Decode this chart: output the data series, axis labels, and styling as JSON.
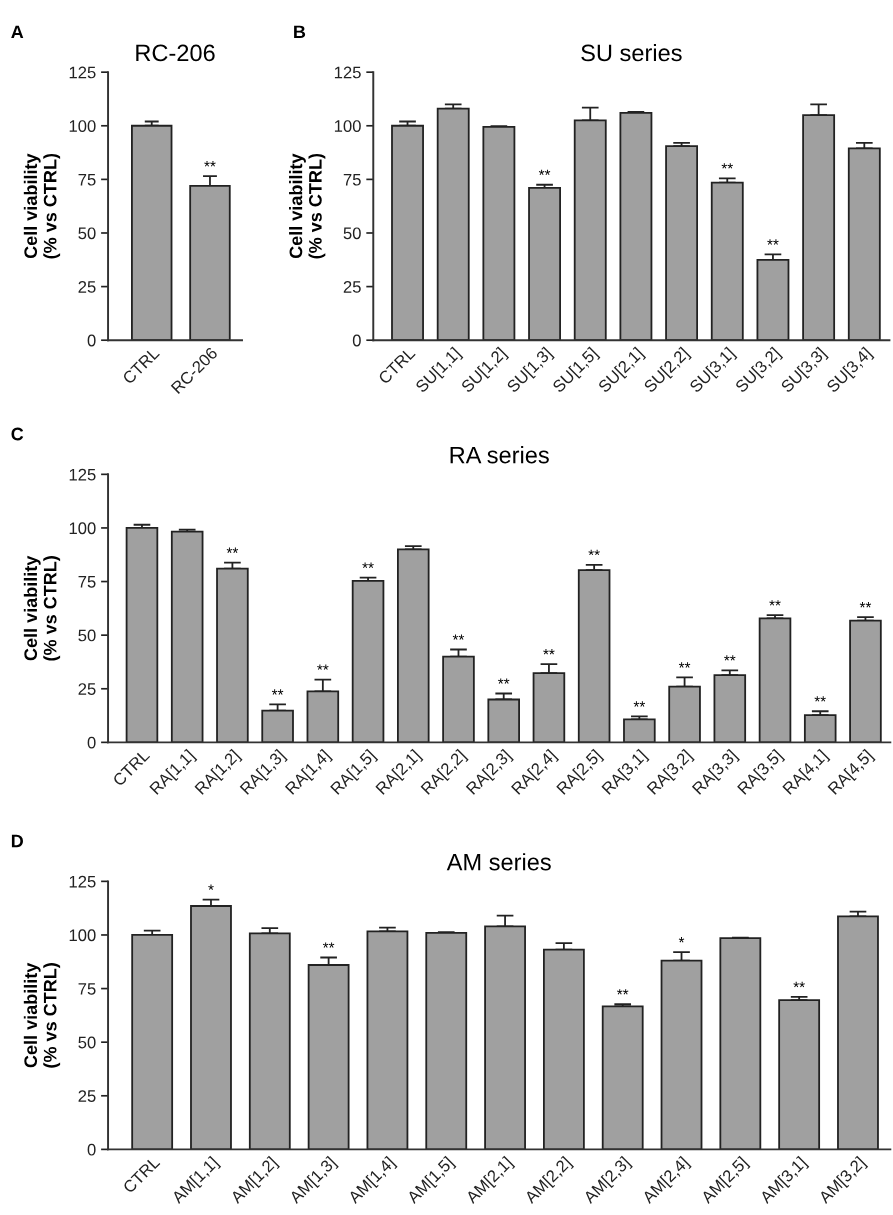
{
  "chart_data": [
    {
      "type": "bar",
      "title": "RC-206",
      "ylabel": "Cell viability\n(% vs CTRL)",
      "categories": [
        "CTRL",
        "RC-206"
      ],
      "values": [
        100,
        72
      ],
      "color": "#a0a0a0",
      "errors": [
        [
          100,
          102
        ],
        [
          72,
          76.5
        ]
      ],
      "ylim": [
        0,
        125
      ],
      "yticks": [
        0,
        25,
        50,
        75,
        100,
        125
      ],
      "annotations": [
        "A",
        {
          "text": "**",
          "x": "RC-206",
          "y": 76.5
        }
      ]
    },
    {
      "type": "bar",
      "title": "SU series",
      "ylabel": "Cell viability\n(% vs CTRL)",
      "categories": [
        "CTRL",
        "SU[1,1]",
        "SU[1,2]",
        "SU[1,3]",
        "SU[1,5]",
        "SU[2,1]",
        "SU[2,2]",
        "SU[3,1]",
        "SU[3,2]",
        "SU[3,3]",
        "SU[3,4]"
      ],
      "values": [
        100,
        108,
        99.5,
        71,
        102.5,
        106,
        90.5,
        73.5,
        37.5,
        105,
        89.5
      ],
      "color": "#a0a0a0",
      "errors": [
        [
          100,
          102
        ],
        [
          108,
          110
        ],
        [
          99.5,
          99.8
        ],
        [
          71,
          72.5
        ],
        [
          102.5,
          108.5
        ],
        [
          106,
          106.5
        ],
        [
          90.5,
          92
        ],
        [
          73.5,
          75.5
        ],
        [
          37.5,
          40
        ],
        [
          105,
          110
        ],
        [
          89.5,
          92
        ]
      ],
      "ylim": [
        0,
        125
      ],
      "yticks": [
        0,
        25,
        50,
        75,
        100,
        125
      ],
      "annotations": [
        "B",
        {
          "text": "**",
          "x": "SU[1,3]",
          "y": 72.5
        },
        {
          "text": "**",
          "x": "SU[3,1]",
          "y": 75.5
        },
        {
          "text": "**",
          "x": "SU[3,2]",
          "y": 40
        }
      ]
    },
    {
      "type": "bar",
      "title": "RA series",
      "ylabel": "Cell viability\n(% vs CTRL)",
      "categories": [
        "CTRL",
        "RA[1,1]",
        "RA[1,2]",
        "RA[1,3]",
        "RA[1,4]",
        "RA[1,5]",
        "RA[2,1]",
        "RA[2,2]",
        "RA[2,3]",
        "RA[2,4]",
        "RA[2,5]",
        "RA[3,1]",
        "RA[3,2]",
        "RA[3,3]",
        "RA[3,5]",
        "RA[4,1]",
        "RA[4,5]"
      ],
      "values": [
        100,
        98.3,
        81,
        14.8,
        23.8,
        75.3,
        90,
        40,
        20,
        32.3,
        80.3,
        10.7,
        26,
        31.4,
        57.8,
        12.7,
        56.8
      ],
      "color": "#a0a0a0",
      "errors": [
        [
          100,
          101.5
        ],
        [
          98.3,
          99.2
        ],
        [
          81,
          83.8
        ],
        [
          14.8,
          17.7
        ],
        [
          23.8,
          29.3
        ],
        [
          75.3,
          76.8
        ],
        [
          90,
          91.5
        ],
        [
          40,
          43.3
        ],
        [
          20,
          22.8
        ],
        [
          32.3,
          36.5
        ],
        [
          80.3,
          82.8
        ],
        [
          10.7,
          12.1
        ],
        [
          26,
          30.3
        ],
        [
          31.4,
          33.6
        ],
        [
          57.8,
          59.3
        ],
        [
          12.7,
          14.5
        ],
        [
          56.8,
          58.4
        ]
      ],
      "ylim": [
        0,
        125
      ],
      "yticks": [
        0,
        25,
        50,
        75,
        100,
        125
      ],
      "annotations": [
        "C",
        {
          "text": "**",
          "x": "RA[1,2]",
          "y": 83.8
        },
        {
          "text": "**",
          "x": "RA[1,3]",
          "y": 17.7
        },
        {
          "text": "**",
          "x": "RA[1,4]",
          "y": 29.3
        },
        {
          "text": "**",
          "x": "RA[1,5]",
          "y": 76.8
        },
        {
          "text": "**",
          "x": "RA[2,2]",
          "y": 43.3
        },
        {
          "text": "**",
          "x": "RA[2,3]",
          "y": 22.8
        },
        {
          "text": "**",
          "x": "RA[2,4]",
          "y": 36.5
        },
        {
          "text": "**",
          "x": "RA[2,5]",
          "y": 82.8
        },
        {
          "text": "**",
          "x": "RA[3,1]",
          "y": 12.1
        },
        {
          "text": "**",
          "x": "RA[3,2]",
          "y": 30.3
        },
        {
          "text": "**",
          "x": "RA[3,3]",
          "y": 33.6
        },
        {
          "text": "**",
          "x": "RA[3,5]",
          "y": 59.3
        },
        {
          "text": "**",
          "x": "RA[4,1]",
          "y": 14.5
        },
        {
          "text": "**",
          "x": "RA[4,5]",
          "y": 58.4
        }
      ]
    },
    {
      "type": "bar",
      "title": "AM series",
      "ylabel": "Cell viability\n(% vs CTRL)",
      "categories": [
        "CTRL",
        "AM[1,1]",
        "AM[1,2]",
        "AM[1,3]",
        "AM[1,4]",
        "AM[1,5]",
        "AM[2,1]",
        "AM[2,2]",
        "AM[2,3]",
        "AM[2,4]",
        "AM[2,5]",
        "AM[3,1]",
        "AM[3,2]"
      ],
      "values": [
        100,
        113.5,
        100.7,
        86,
        101.7,
        101,
        104,
        93.2,
        66.7,
        88,
        98.5,
        69.6,
        108.7
      ],
      "color": "#a0a0a0",
      "errors": [
        [
          100,
          102
        ],
        [
          113.5,
          116.5
        ],
        [
          100.7,
          103.2
        ],
        [
          86,
          89.5
        ],
        [
          101.7,
          103.4
        ],
        [
          101,
          101.3
        ],
        [
          104,
          109
        ],
        [
          93.2,
          96.2
        ],
        [
          66.7,
          67.7
        ],
        [
          88,
          92
        ],
        [
          98.5,
          98.8
        ],
        [
          69.6,
          71.1
        ],
        [
          108.7,
          110.9
        ]
      ],
      "ylim": [
        0,
        125
      ],
      "yticks": [
        0,
        25,
        50,
        75,
        100,
        125
      ],
      "annotations": [
        "D",
        {
          "text": "*",
          "x": "AM[1,1]",
          "y": 116.5
        },
        {
          "text": "**",
          "x": "AM[1,3]",
          "y": 89.5
        },
        {
          "text": "*",
          "x": "AM[2,4]",
          "y": 92
        },
        {
          "text": "**",
          "x": "AM[2,3]",
          "y": 67.7
        },
        {
          "text": "**",
          "x": "AM[3,1]",
          "y": 71.1
        }
      ]
    }
  ]
}
